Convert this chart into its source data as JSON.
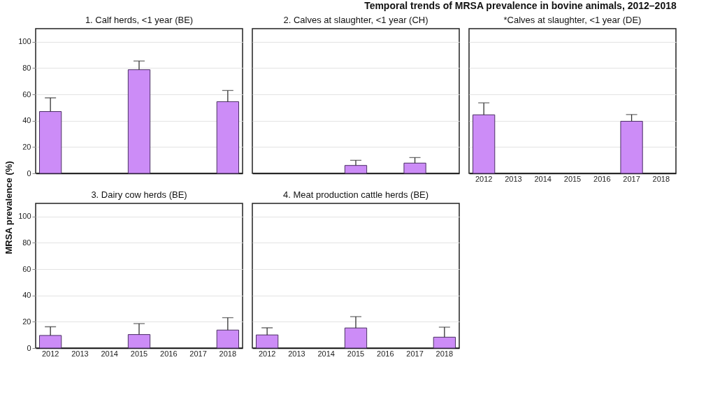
{
  "chart_data": [
    {
      "type": "bar",
      "title": "1. Calf herds, <1 year (BE)",
      "annotations": [
        "Temporal trends of MRSA prevalence in bovine animals, 2012–2018"
      ],
      "ylabel": "MRSA prevalence (%)",
      "categories": [
        "2012",
        "2013",
        "2014",
        "2015",
        "2016",
        "2017",
        "2018"
      ],
      "values": [
        47,
        null,
        null,
        78.8,
        null,
        null,
        54.5
      ],
      "errors": [
        [
          47,
          57.4
        ],
        null,
        null,
        [
          78.8,
          85.4
        ],
        null,
        null,
        [
          54.5,
          63
        ]
      ],
      "color": "#cc8cf7",
      "ylim": [
        0,
        110
      ],
      "yticks": [
        0,
        20,
        40,
        60,
        80,
        100
      ],
      "grid": "y",
      "tick_labels": "y"
    },
    {
      "type": "bar",
      "title": "2. Calves at slaughter, <1 year (CH)",
      "categories": [
        "2012",
        "2013",
        "2014",
        "2015",
        "2016",
        "2017",
        "2018"
      ],
      "values": [
        null,
        null,
        null,
        6,
        null,
        7.8,
        null
      ],
      "errors": [
        null,
        null,
        null,
        [
          6,
          9.9
        ],
        null,
        [
          7.8,
          12
        ],
        null
      ],
      "color": "#cc8cf7",
      "ylim": [
        0,
        110
      ],
      "yticks": [
        0,
        20,
        40,
        60,
        80,
        100
      ],
      "grid": "y",
      "tick_labels": false
    },
    {
      "type": "bar",
      "title": "*Calves at slaughter, <1 year (DE)",
      "categories": [
        "2012",
        "2013",
        "2014",
        "2015",
        "2016",
        "2017",
        "2018"
      ],
      "values": [
        44.5,
        null,
        null,
        null,
        null,
        39.6,
        null
      ],
      "errors": [
        [
          44.5,
          53.6
        ],
        null,
        null,
        null,
        null,
        [
          39.6,
          44.7
        ],
        null
      ],
      "color": "#cc8cf7",
      "ylim": [
        0,
        110
      ],
      "yticks": [
        0,
        20,
        40,
        60,
        80,
        100
      ],
      "grid": "y",
      "tick_labels": "x"
    },
    {
      "type": "bar",
      "title": "3. Dairy cow herds (BE)",
      "categories": [
        "2012",
        "2013",
        "2014",
        "2015",
        "2016",
        "2017",
        "2018"
      ],
      "values": [
        9.6,
        null,
        null,
        10.3,
        null,
        null,
        13.7
      ],
      "errors": [
        [
          9.6,
          16.2
        ],
        null,
        null,
        [
          10.3,
          18.6
        ],
        null,
        null,
        [
          13.7,
          23.1
        ]
      ],
      "color": "#cc8cf7",
      "ylim": [
        0,
        110
      ],
      "yticks": [
        0,
        20,
        40,
        60,
        80,
        100
      ],
      "grid": "y"
    },
    {
      "type": "bar",
      "title": "4. Meat production cattle herds (BE)",
      "categories": [
        "2012",
        "2013",
        "2014",
        "2015",
        "2016",
        "2017",
        "2018"
      ],
      "values": [
        10,
        null,
        null,
        15.3,
        null,
        null,
        8.3
      ],
      "errors": [
        [
          10,
          15.4
        ],
        null,
        null,
        [
          15.3,
          23.9
        ],
        null,
        null,
        [
          8.3,
          15.9
        ]
      ],
      "color": "#cc8cf7",
      "ylim": [
        0,
        110
      ],
      "yticks": [
        0,
        20,
        40,
        60,
        80,
        100
      ],
      "grid": "y",
      "tick_labels": "x"
    }
  ]
}
